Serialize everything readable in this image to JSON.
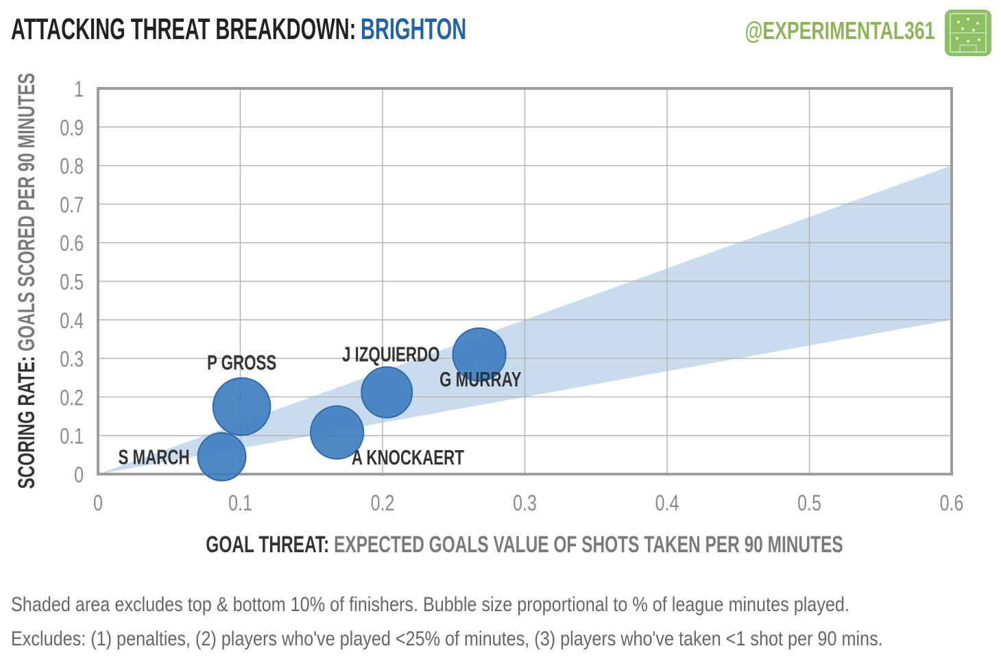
{
  "header": {
    "title": "ATTACKING THREAT BREAKDOWN:",
    "team": "BRIGHTON",
    "handle": "@EXPERIMENTAL361",
    "logo_icon": "football-pitch-icon",
    "accent": "#1e64ad",
    "handle_color": "#8db558"
  },
  "chart_data": {
    "type": "scatter",
    "title": "ATTACKING THREAT BREAKDOWN: BRIGHTON",
    "xlabel_prefix": "GOAL THREAT:",
    "xlabel": "EXPECTED GOALS VALUE OF SHOTS TAKEN PER 90 MINUTES",
    "ylabel_prefix": "SCORING RATE:",
    "ylabel": "GOALS SCORED PER 90 MINUTES",
    "xlim": [
      0,
      0.6
    ],
    "ylim": [
      0,
      1
    ],
    "xticks": [
      "0",
      "0.1",
      "0.2",
      "0.3",
      "0.4",
      "0.5",
      "0.6"
    ],
    "yticks": [
      "0",
      "0.1",
      "0.2",
      "0.3",
      "0.4",
      "0.5",
      "0.6",
      "0.7",
      "0.8",
      "0.9",
      "1"
    ],
    "grid": true,
    "shaded_band": {
      "lower_at_x_max": 0.4,
      "upper_at_x_max": 0.8,
      "color": "#c9dcee"
    },
    "bubble_color": "#3f7fc0",
    "points": [
      {
        "name": "S MARCH",
        "x": 0.087,
        "y": 0.045,
        "minutes_share": 0.35,
        "label_side": "left"
      },
      {
        "name": "P GROSS",
        "x": 0.101,
        "y": 0.175,
        "minutes_share": 0.65,
        "label_side": "top"
      },
      {
        "name": "A KNOCKAERT",
        "x": 0.168,
        "y": 0.108,
        "minutes_share": 0.5,
        "label_side": "bottom-right"
      },
      {
        "name": "J IZQUIERDO",
        "x": 0.203,
        "y": 0.212,
        "minutes_share": 0.43,
        "label_side": "top-left"
      },
      {
        "name": "G MURRAY",
        "x": 0.268,
        "y": 0.31,
        "minutes_share": 0.5,
        "label_side": "bottom-left"
      }
    ]
  },
  "footnotes": {
    "line1": "Shaded area excludes top & bottom 10% of finishers. Bubble size proportional to % of league minutes played.",
    "line2": "Excludes: (1) penalties, (2) players who've played <25% of minutes, (3) players who've taken <1 shot per 90 mins."
  }
}
